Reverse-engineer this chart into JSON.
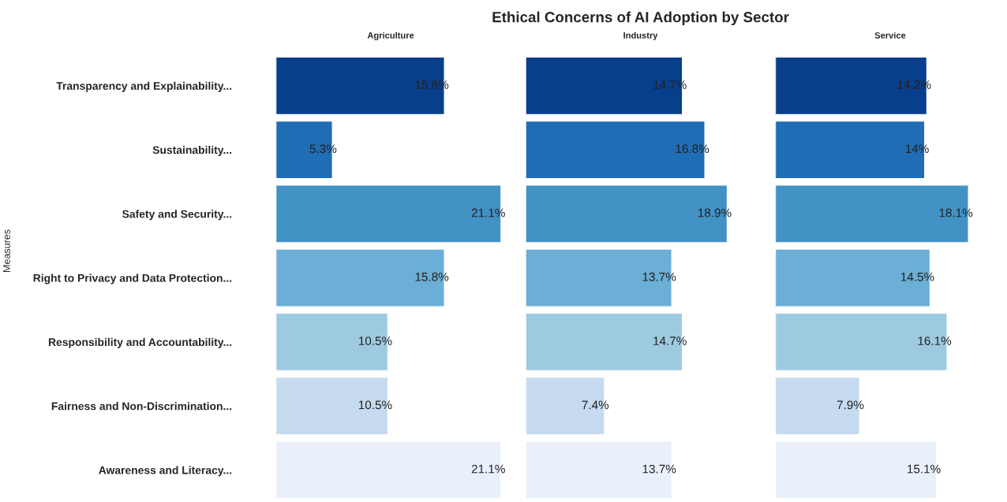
{
  "chart_data": [
    {
      "type": "bar",
      "orientation": "horizontal",
      "subtitle": "Agriculture",
      "ylabel": "Measures",
      "tick_labels": "y",
      "categories": [
        "Transparency and Explainability...",
        "Sustainability...",
        "Safety and Security...",
        "Right to Privacy and Data Protection...",
        "Responsibility and Accountability...",
        "Fairness and Non-Discrimination...",
        "Awareness and Literacy..."
      ],
      "values": [
        15.8,
        5.3,
        21.1,
        15.8,
        10.5,
        10.5,
        21.1
      ],
      "value_labels": [
        "15.8%",
        "5.3%",
        "21.1%",
        "15.8%",
        "10.5%",
        "10.5%",
        "21.1%"
      ],
      "colors": [
        "#083f8c",
        "#1f6db5",
        "#4292c6",
        "#6baed6",
        "#9ecae1",
        "#c6dbef",
        "#eaf0fb"
      ]
    },
    {
      "type": "bar",
      "orientation": "horizontal",
      "title": "Ethical Concerns of AI Adoption by Sector",
      "subtitle": "Industry",
      "tick_labels": false,
      "values": [
        14.7,
        16.8,
        18.9,
        13.7,
        14.7,
        7.4,
        13.7
      ],
      "value_labels": [
        "14.7%",
        "16.8%",
        "18.9%",
        "13.7%",
        "14.7%",
        "7.4%",
        "13.7%"
      ],
      "colors": [
        "#083f8c",
        "#1f6db5",
        "#4292c6",
        "#6baed6",
        "#9ecae1",
        "#c6dbef",
        "#eaf0fb"
      ]
    },
    {
      "type": "bar",
      "orientation": "horizontal",
      "subtitle": "Service",
      "tick_labels": false,
      "values": [
        14.2,
        14,
        18.1,
        14.5,
        16.1,
        7.9,
        15.1
      ],
      "value_labels": [
        "14.2%",
        "14%",
        "18.1%",
        "14.5%",
        "16.1%",
        "7.9%",
        "15.1%"
      ],
      "colors": [
        "#083f8c",
        "#1f6db5",
        "#4292c6",
        "#6baed6",
        "#9ecae1",
        "#c6dbef",
        "#eaf0fb"
      ]
    }
  ]
}
